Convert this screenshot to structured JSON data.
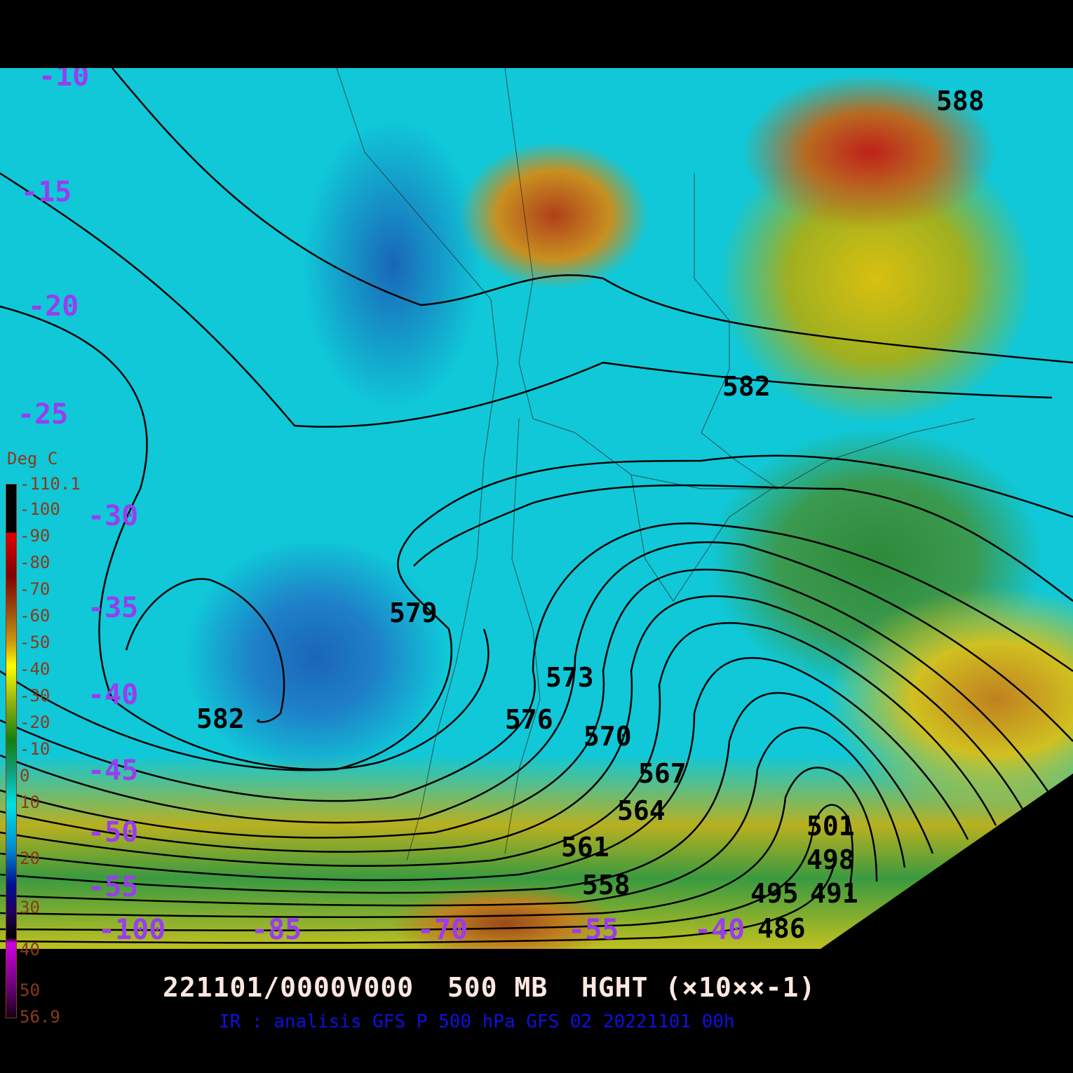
{
  "title": "221101/0000V000  500 MB  HGHT (×10××-1)",
  "subtitle": "IR : analisis GFS P 500 hPa GFS 02 20221101 00h",
  "colorbar": {
    "unit": "Deg C",
    "labels": [
      "-110.1",
      "-100",
      "-90",
      "-80",
      "-70",
      "-60",
      "-50",
      "-40",
      "-30",
      "-20",
      "-10",
      "0",
      "10",
      "20",
      "30",
      "40",
      "50",
      "56.9"
    ]
  },
  "latitude_labels": [
    "-10",
    "-15",
    "-20",
    "-25",
    "-30",
    "-35",
    "-40",
    "-45",
    "-50",
    "-55"
  ],
  "longitude_labels": [
    "-100",
    "-85",
    "-70",
    "-55",
    "-40"
  ],
  "contour_labels": [
    "588",
    "582",
    "582",
    "579",
    "573",
    "576",
    "570",
    "567",
    "564",
    "561",
    "558",
    "501",
    "498",
    "495",
    "491",
    "486"
  ],
  "contour_units": "500 mb geopotential height, decameters"
}
